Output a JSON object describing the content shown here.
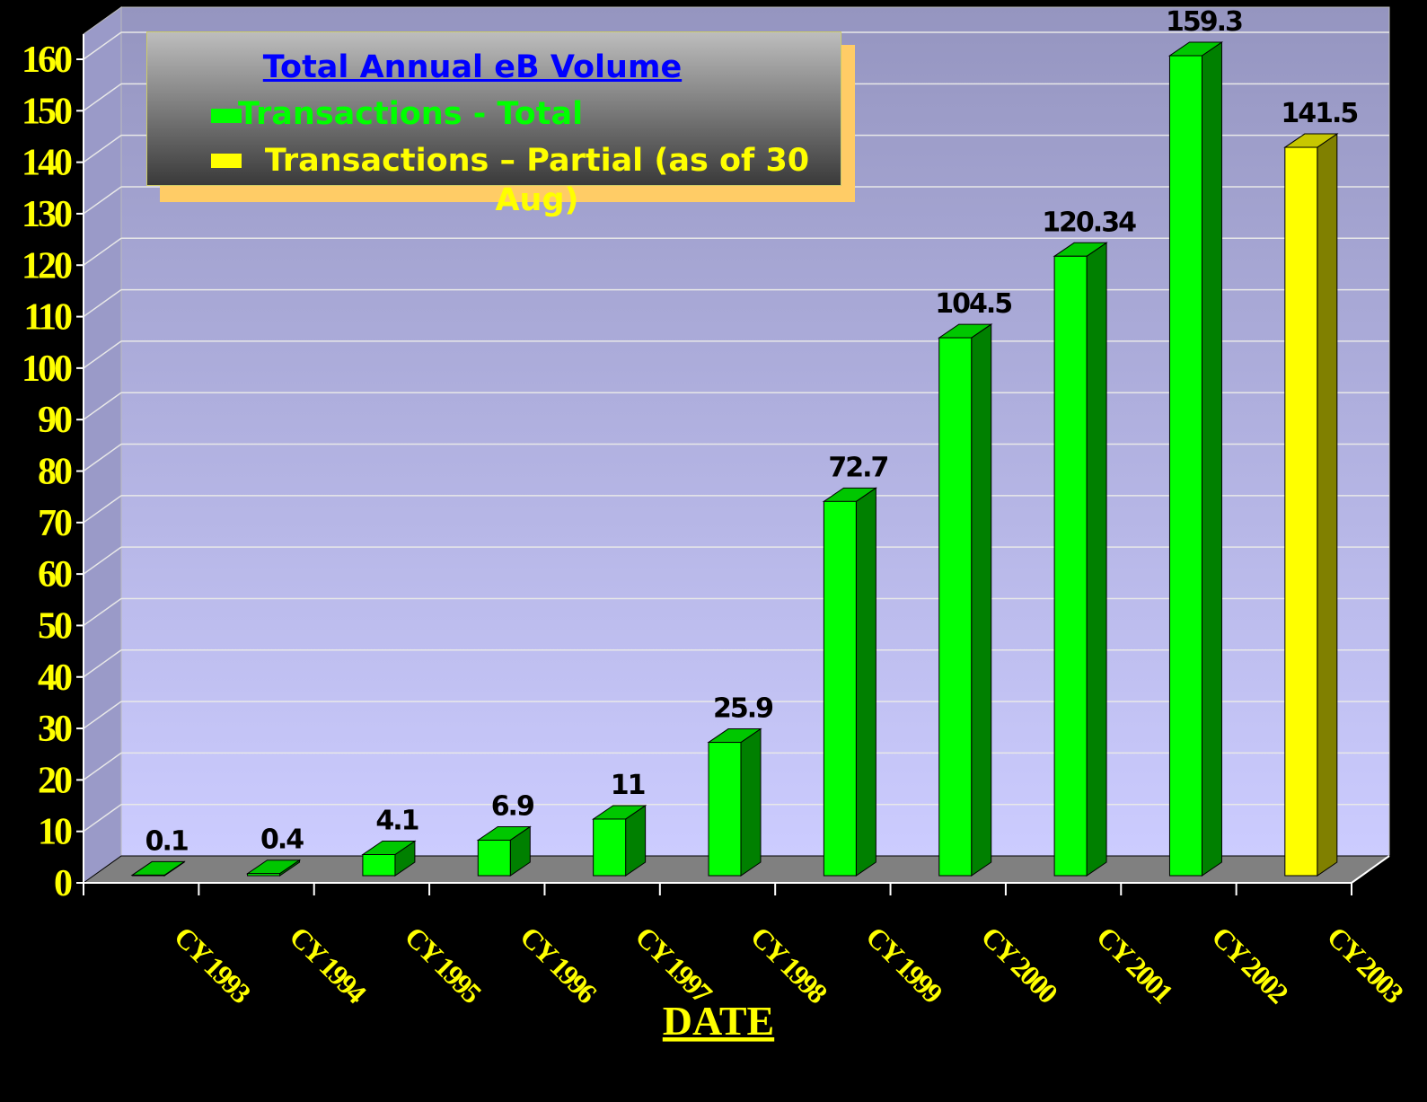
{
  "chart_data": {
    "type": "bar3d",
    "legend_title": "Total Annual eB Volume",
    "x_label": "DATE",
    "categories": [
      "CY 1993",
      "CY 1994",
      "CY 1995",
      "CY 1996",
      "CY 1997",
      "CY 1998",
      "CY 1999",
      "CY 2000",
      "CY 2001",
      "CY 2002",
      "CY 2003"
    ],
    "series": [
      {
        "name": "Transactions - Total",
        "color": "#00ff00",
        "values": [
          0.1,
          0.4,
          4.1,
          6.9,
          11,
          25.9,
          72.7,
          104.5,
          120.34,
          159.3,
          null
        ]
      },
      {
        "name": "Transactions – Partial (as of 30 Aug)",
        "color": "#ffff00",
        "values": [
          null,
          null,
          null,
          null,
          null,
          null,
          null,
          null,
          null,
          null,
          141.5
        ]
      }
    ],
    "ylim": [
      0,
      160
    ],
    "yticks": [
      0,
      10,
      20,
      30,
      40,
      50,
      60,
      70,
      80,
      90,
      100,
      110,
      120,
      130,
      140,
      150,
      160
    ],
    "grid": true
  }
}
